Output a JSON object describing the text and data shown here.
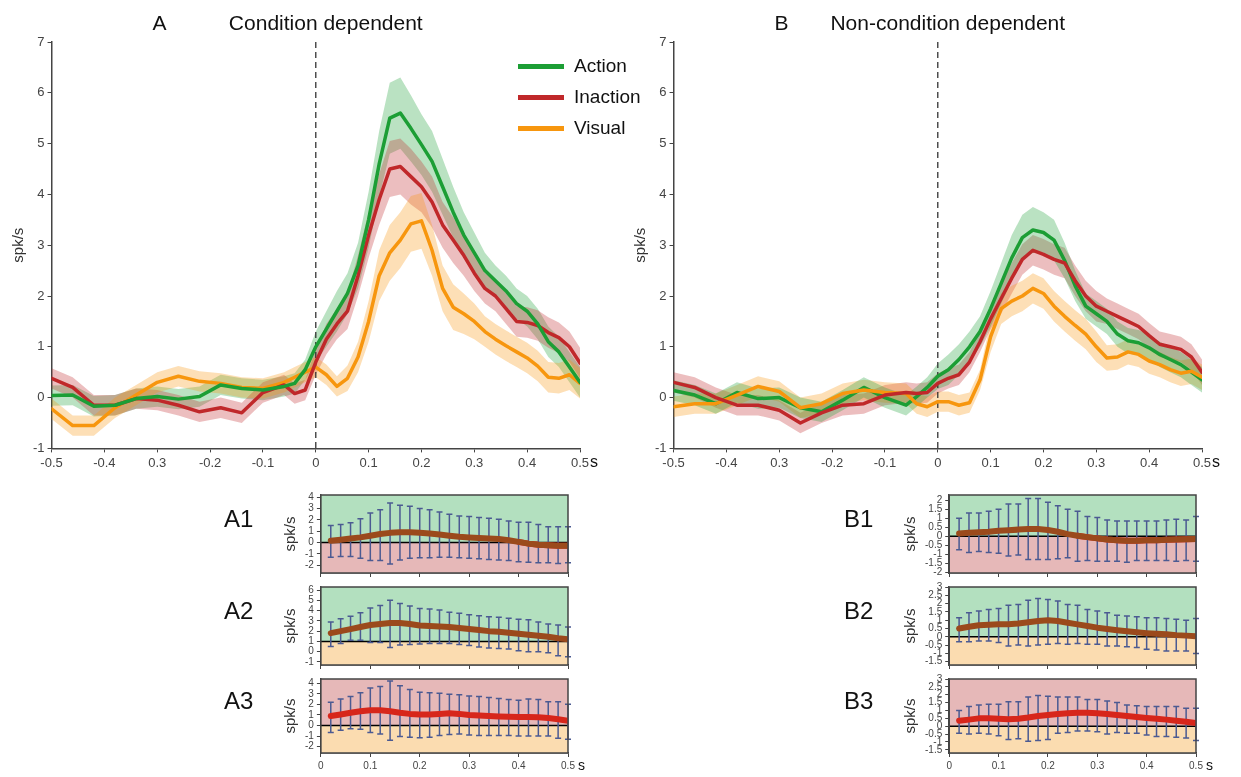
{
  "chart_data": [
    {
      "type": "line",
      "title": "Condition dependent",
      "annotations": [
        "A"
      ],
      "xlabel": "s",
      "ylabel": "spk/s",
      "xlim": [
        -0.5,
        0.5
      ],
      "ylim": [
        -1,
        7
      ],
      "xticks": [
        -0.5,
        -0.4,
        {
          "value": -0.3,
          "label": "0.3"
        },
        -0.2,
        -0.1,
        0,
        0.1,
        0.2,
        0.3,
        0.4,
        0.5
      ],
      "yticks": [
        -1,
        0,
        1,
        2,
        3,
        4,
        5,
        6,
        7
      ],
      "legend": "top right",
      "grid": false,
      "marker": "none",
      "ref_lines": [
        {
          "axis": "x",
          "value": 0,
          "line_style": "dashed",
          "color": "#333333"
        }
      ],
      "x": [
        -0.5,
        -0.46,
        -0.42,
        -0.38,
        -0.34,
        -0.3,
        -0.26,
        -0.22,
        -0.18,
        -0.14,
        -0.1,
        -0.06,
        -0.04,
        -0.02,
        0,
        0.02,
        0.04,
        0.06,
        0.08,
        0.1,
        0.12,
        0.14,
        0.16,
        0.18,
        0.2,
        0.22,
        0.24,
        0.26,
        0.28,
        0.3,
        0.32,
        0.34,
        0.36,
        0.38,
        0.4,
        0.42,
        0.44,
        0.46,
        0.48,
        0.5
      ],
      "series": [
        {
          "name": "Action",
          "color": "#1c9e35",
          "values": [
            0.04,
            0.05,
            -0.17,
            -0.15,
            -0.02,
            0.02,
            -0.03,
            0.02,
            0.25,
            0.18,
            0.15,
            0.22,
            0.28,
            0.55,
            1.0,
            1.35,
            1.7,
            2.05,
            2.6,
            3.5,
            4.6,
            5.5,
            5.6,
            5.3,
            4.98,
            4.65,
            4.15,
            3.65,
            3.2,
            2.85,
            2.5,
            2.3,
            2.1,
            1.85,
            1.7,
            1.45,
            1.1,
            0.9,
            0.6,
            0.3
          ],
          "lower": [
            -0.16,
            -0.15,
            -0.37,
            -0.35,
            -0.22,
            -0.18,
            -0.23,
            -0.18,
            0.05,
            -0.02,
            -0.05,
            0.02,
            0.08,
            0.35,
            0.7,
            1.0,
            1.3,
            1.65,
            2.15,
            2.95,
            3.95,
            4.8,
            4.9,
            4.65,
            4.38,
            4.05,
            3.6,
            3.15,
            2.75,
            2.45,
            2.15,
            2.0,
            1.8,
            1.55,
            1.4,
            1.15,
            0.8,
            0.6,
            0.3,
            0.0
          ],
          "upper": [
            0.24,
            0.25,
            0.03,
            0.05,
            0.18,
            0.22,
            0.17,
            0.22,
            0.45,
            0.38,
            0.35,
            0.42,
            0.48,
            0.75,
            1.3,
            1.7,
            2.1,
            2.45,
            3.05,
            4.05,
            5.25,
            6.2,
            6.3,
            5.95,
            5.58,
            5.25,
            4.7,
            4.15,
            3.65,
            3.25,
            2.85,
            2.6,
            2.4,
            2.15,
            2.0,
            1.75,
            1.4,
            1.2,
            0.9,
            0.6
          ]
        },
        {
          "name": "Inaction",
          "color": "#c0282a",
          "values": [
            0.38,
            0.2,
            -0.15,
            -0.15,
            -0.02,
            -0.05,
            -0.15,
            -0.28,
            -0.2,
            -0.3,
            0.1,
            0.25,
            0.08,
            0.15,
            0.7,
            1.15,
            1.45,
            1.7,
            2.4,
            3.2,
            3.9,
            4.5,
            4.55,
            4.35,
            4.15,
            3.85,
            3.4,
            3.1,
            2.8,
            2.45,
            2.15,
            2.0,
            1.75,
            1.5,
            1.48,
            1.42,
            1.28,
            1.18,
            1.0,
            0.68
          ],
          "lower": [
            0.18,
            0.0,
            -0.35,
            -0.35,
            -0.22,
            -0.25,
            -0.35,
            -0.48,
            -0.4,
            -0.5,
            -0.1,
            0.05,
            -0.12,
            -0.05,
            0.45,
            0.85,
            1.15,
            1.35,
            2.0,
            2.75,
            3.4,
            3.95,
            4.0,
            3.8,
            3.65,
            3.35,
            2.95,
            2.65,
            2.4,
            2.1,
            1.85,
            1.7,
            1.45,
            1.2,
            1.18,
            1.12,
            0.98,
            0.88,
            0.7,
            0.38
          ],
          "upper": [
            0.58,
            0.4,
            0.05,
            0.05,
            0.18,
            0.15,
            0.05,
            -0.08,
            0.0,
            -0.1,
            0.3,
            0.45,
            0.28,
            0.35,
            0.95,
            1.45,
            1.75,
            2.05,
            2.8,
            3.65,
            4.4,
            5.05,
            5.1,
            4.9,
            4.65,
            4.35,
            3.85,
            3.55,
            3.2,
            2.8,
            2.45,
            2.3,
            2.05,
            1.8,
            1.78,
            1.72,
            1.58,
            1.48,
            1.3,
            0.98
          ]
        },
        {
          "name": "Visual",
          "color": "#f7960e",
          "values": [
            -0.22,
            -0.55,
            -0.55,
            -0.2,
            0.05,
            0.3,
            0.42,
            0.32,
            0.28,
            0.2,
            0.18,
            0.3,
            0.4,
            0.5,
            0.6,
            0.45,
            0.22,
            0.38,
            0.8,
            1.5,
            2.4,
            2.85,
            3.1,
            3.42,
            3.48,
            2.9,
            2.15,
            1.78,
            1.65,
            1.5,
            1.3,
            1.15,
            1.02,
            0.9,
            0.78,
            0.62,
            0.4,
            0.38,
            0.45,
            0.28
          ],
          "lower": [
            -0.42,
            -0.75,
            -0.75,
            -0.4,
            -0.15,
            0.1,
            0.22,
            0.12,
            0.08,
            0.0,
            -0.02,
            0.1,
            0.2,
            0.3,
            0.4,
            0.25,
            0.02,
            0.13,
            0.5,
            1.1,
            1.9,
            2.3,
            2.55,
            2.87,
            2.93,
            2.4,
            1.7,
            1.33,
            1.25,
            1.15,
            1.0,
            0.85,
            0.72,
            0.6,
            0.48,
            0.32,
            0.1,
            0.08,
            0.15,
            -0.02
          ],
          "upper": [
            -0.02,
            -0.35,
            -0.35,
            0.0,
            0.25,
            0.5,
            0.62,
            0.52,
            0.48,
            0.4,
            0.38,
            0.5,
            0.6,
            0.7,
            0.8,
            0.65,
            0.42,
            0.63,
            1.1,
            1.9,
            2.9,
            3.4,
            3.65,
            3.97,
            4.03,
            3.4,
            2.6,
            2.23,
            2.05,
            1.85,
            1.6,
            1.45,
            1.32,
            1.2,
            1.08,
            0.92,
            0.7,
            0.68,
            0.75,
            0.58
          ]
        }
      ]
    },
    {
      "type": "line",
      "title": "Non-condition dependent",
      "annotations": [
        "B"
      ],
      "xlabel": "s",
      "ylabel": "spk/s",
      "xlim": [
        -0.5,
        0.5
      ],
      "ylim": [
        -1,
        7
      ],
      "xticks": [
        -0.5,
        -0.4,
        {
          "value": -0.3,
          "label": "0.3"
        },
        -0.2,
        -0.1,
        0,
        0.1,
        0.2,
        0.3,
        0.4,
        0.5
      ],
      "yticks": [
        -1,
        0,
        1,
        2,
        3,
        4,
        5,
        6,
        7
      ],
      "grid": false,
      "marker": "none",
      "ref_lines": [
        {
          "axis": "x",
          "value": 0,
          "line_style": "dashed",
          "color": "#333333"
        }
      ],
      "x": [
        -0.5,
        -0.46,
        -0.42,
        -0.38,
        -0.34,
        -0.3,
        -0.26,
        -0.22,
        -0.18,
        -0.14,
        -0.1,
        -0.06,
        -0.04,
        -0.02,
        0,
        0.02,
        0.04,
        0.06,
        0.08,
        0.1,
        0.12,
        0.14,
        0.16,
        0.18,
        0.2,
        0.22,
        0.24,
        0.26,
        0.28,
        0.3,
        0.32,
        0.34,
        0.36,
        0.38,
        0.4,
        0.42,
        0.44,
        0.46,
        0.48,
        0.5
      ],
      "series": [
        {
          "color": "#c0282a",
          "values": [
            0.3,
            0.2,
            0.0,
            -0.15,
            -0.15,
            -0.25,
            -0.5,
            -0.3,
            -0.15,
            -0.12,
            0.05,
            0.1,
            0.08,
            0.1,
            0.28,
            0.38,
            0.45,
            0.7,
            1.1,
            1.55,
            1.95,
            2.35,
            2.72,
            2.9,
            2.82,
            2.72,
            2.65,
            2.3,
            2.0,
            1.8,
            1.7,
            1.6,
            1.5,
            1.4,
            1.22,
            1.05,
            1.0,
            0.95,
            0.8,
            0.5
          ],
          "lower": [
            0.1,
            0.0,
            -0.2,
            -0.35,
            -0.35,
            -0.45,
            -0.7,
            -0.5,
            -0.35,
            -0.32,
            -0.15,
            -0.1,
            -0.12,
            -0.1,
            0.08,
            0.18,
            0.25,
            0.5,
            0.9,
            1.35,
            1.65,
            2.05,
            2.42,
            2.6,
            2.52,
            2.42,
            2.35,
            2.0,
            1.7,
            1.5,
            1.45,
            1.35,
            1.25,
            1.15,
            0.97,
            0.8,
            0.75,
            0.7,
            0.55,
            0.25
          ],
          "upper": [
            0.5,
            0.4,
            0.2,
            0.05,
            0.05,
            -0.05,
            -0.3,
            -0.1,
            0.05,
            0.08,
            0.25,
            0.3,
            0.28,
            0.3,
            0.48,
            0.58,
            0.65,
            0.9,
            1.3,
            1.75,
            2.25,
            2.65,
            3.02,
            3.2,
            3.12,
            3.02,
            2.95,
            2.6,
            2.3,
            2.1,
            1.95,
            1.85,
            1.75,
            1.65,
            1.47,
            1.3,
            1.25,
            1.2,
            1.05,
            0.75
          ]
        },
        {
          "color": "#f7960e",
          "values": [
            -0.18,
            -0.12,
            -0.12,
            0.05,
            0.22,
            0.12,
            -0.2,
            -0.12,
            0.08,
            0.15,
            0.1,
            0.08,
            -0.12,
            -0.18,
            -0.08,
            -0.08,
            -0.15,
            -0.1,
            0.35,
            1.2,
            1.75,
            1.9,
            2.0,
            2.15,
            2.05,
            1.8,
            1.6,
            1.42,
            1.25,
            1.0,
            0.78,
            0.8,
            0.9,
            0.85,
            0.72,
            0.65,
            0.55,
            0.48,
            0.52,
            0.4
          ],
          "lower": [
            -0.38,
            -0.32,
            -0.32,
            -0.15,
            0.02,
            -0.08,
            -0.4,
            -0.32,
            -0.12,
            -0.05,
            -0.1,
            -0.12,
            -0.32,
            -0.38,
            -0.28,
            -0.28,
            -0.35,
            -0.3,
            0.15,
            0.9,
            1.45,
            1.6,
            1.7,
            1.85,
            1.75,
            1.5,
            1.3,
            1.12,
            0.95,
            0.7,
            0.53,
            0.55,
            0.65,
            0.6,
            0.47,
            0.4,
            0.3,
            0.23,
            0.27,
            0.15
          ],
          "upper": [
            0.02,
            0.08,
            0.08,
            0.25,
            0.42,
            0.32,
            0.0,
            0.08,
            0.28,
            0.35,
            0.3,
            0.28,
            0.08,
            0.02,
            0.12,
            0.12,
            0.05,
            0.1,
            0.55,
            1.5,
            2.05,
            2.2,
            2.3,
            2.45,
            2.35,
            2.1,
            1.9,
            1.72,
            1.55,
            1.3,
            1.03,
            1.05,
            1.15,
            1.1,
            0.97,
            0.9,
            0.8,
            0.73,
            0.77,
            0.65
          ]
        },
        {
          "color": "#1c9e35",
          "values": [
            0.14,
            0.05,
            -0.12,
            0.1,
            -0.02,
            0.0,
            -0.2,
            -0.28,
            -0.05,
            0.2,
            0.0,
            -0.15,
            0.02,
            0.2,
            0.42,
            0.55,
            0.75,
            1.0,
            1.3,
            1.75,
            2.25,
            2.75,
            3.15,
            3.3,
            3.25,
            3.1,
            2.7,
            2.2,
            1.8,
            1.65,
            1.5,
            1.25,
            1.12,
            1.08,
            0.98,
            0.85,
            0.75,
            0.65,
            0.5,
            0.35
          ],
          "lower": [
            -0.06,
            -0.15,
            -0.32,
            -0.1,
            -0.22,
            -0.2,
            -0.4,
            -0.48,
            -0.25,
            0.0,
            -0.2,
            -0.35,
            -0.18,
            0.0,
            0.17,
            0.25,
            0.45,
            0.7,
            1.0,
            1.4,
            1.85,
            2.3,
            2.7,
            2.85,
            2.85,
            2.7,
            2.35,
            1.9,
            1.55,
            1.4,
            1.25,
            1.0,
            0.87,
            0.83,
            0.73,
            0.6,
            0.5,
            0.4,
            0.25,
            0.1
          ],
          "upper": [
            0.34,
            0.25,
            0.08,
            0.3,
            0.18,
            0.2,
            0.0,
            -0.08,
            0.15,
            0.4,
            0.2,
            0.05,
            0.22,
            0.4,
            0.67,
            0.85,
            1.05,
            1.3,
            1.6,
            2.1,
            2.65,
            3.2,
            3.6,
            3.75,
            3.65,
            3.5,
            3.05,
            2.5,
            2.05,
            1.9,
            1.75,
            1.5,
            1.37,
            1.33,
            1.23,
            1.1,
            1.0,
            0.9,
            0.75,
            0.6
          ]
        }
      ]
    },
    {
      "type": "line",
      "title": "A1",
      "ylabel": "spk/s",
      "xlim": [
        0,
        0.5
      ],
      "ylim": [
        -2.7,
        4.2
      ],
      "xticks": [
        0,
        0.1,
        0.2,
        0.3,
        0.4,
        0.5
      ],
      "yticks": [
        -2,
        -1,
        0,
        1,
        2,
        3,
        4
      ],
      "tick_labels": "y",
      "grid": false,
      "marker": "none",
      "bands": [
        {
          "axis": "y",
          "from": 0,
          "to": 4.2,
          "color": "#b3e0bf"
        },
        {
          "axis": "y",
          "from": -2.7,
          "to": 0,
          "color": "#e6b8b8"
        }
      ],
      "ref_lines": [
        {
          "axis": "y",
          "value": 0,
          "color": "#000000"
        }
      ],
      "x": [
        0.02,
        0.04,
        0.06,
        0.08,
        0.1,
        0.12,
        0.14,
        0.16,
        0.18,
        0.2,
        0.22,
        0.24,
        0.26,
        0.28,
        0.3,
        0.32,
        0.34,
        0.36,
        0.38,
        0.4,
        0.42,
        0.44,
        0.46,
        0.48,
        0.5
      ],
      "series": [
        {
          "color": "#9b4a1c",
          "values": [
            0.15,
            0.25,
            0.35,
            0.45,
            0.6,
            0.75,
            0.85,
            0.9,
            0.9,
            0.85,
            0.8,
            0.7,
            0.6,
            0.5,
            0.45,
            0.4,
            0.35,
            0.3,
            0.2,
            0.05,
            -0.1,
            -0.2,
            -0.25,
            -0.3,
            -0.3
          ],
          "errors": [
            [
              -1.3,
              1.5
            ],
            [
              -1.25,
              1.6
            ],
            [
              -1.25,
              1.75
            ],
            [
              -1.4,
              2.1
            ],
            [
              -1.6,
              2.6
            ],
            [
              -1.6,
              2.9
            ],
            [
              -1.9,
              3.5
            ],
            [
              -1.55,
              3.3
            ],
            [
              -1.4,
              3.2
            ],
            [
              -1.35,
              3.0
            ],
            [
              -1.35,
              2.9
            ],
            [
              -1.3,
              2.7
            ],
            [
              -1.3,
              2.5
            ],
            [
              -1.35,
              2.35
            ],
            [
              -1.4,
              2.3
            ],
            [
              -1.45,
              2.2
            ],
            [
              -1.5,
              2.15
            ],
            [
              -1.55,
              2.05
            ],
            [
              -1.6,
              1.9
            ],
            [
              -1.7,
              1.8
            ],
            [
              -1.75,
              1.8
            ],
            [
              -1.8,
              1.6
            ],
            [
              -1.8,
              1.4
            ],
            [
              -1.85,
              1.4
            ],
            [
              -1.8,
              1.4
            ]
          ]
        },
        {
          "color": "#d7261b",
          "x": [
            0.4,
            0.42,
            0.44,
            0.46,
            0.48,
            0.5
          ],
          "values": [
            0.05,
            -0.1,
            -0.2,
            -0.25,
            -0.3,
            -0.3
          ]
        }
      ]
    },
    {
      "type": "line",
      "title": "B1",
      "ylabel": "spk/s",
      "xlim": [
        0,
        0.5
      ],
      "ylim": [
        -2.05,
        2.3
      ],
      "xticks": [
        0,
        0.1,
        0.2,
        0.3,
        0.4,
        0.5
      ],
      "yticks": [
        -2,
        -1.5,
        -1,
        -0.5,
        0,
        0.5,
        1,
        1.5,
        2
      ],
      "tick_labels": "y",
      "grid": false,
      "marker": "none",
      "bands": [
        {
          "axis": "y",
          "from": 0,
          "to": 2.3,
          "color": "#b3e0bf"
        },
        {
          "axis": "y",
          "from": -2.05,
          "to": 0,
          "color": "#e6b8b8"
        }
      ],
      "ref_lines": [
        {
          "axis": "y",
          "value": 0,
          "color": "#000000"
        }
      ],
      "x": [
        0.02,
        0.04,
        0.06,
        0.08,
        0.1,
        0.12,
        0.14,
        0.16,
        0.18,
        0.2,
        0.22,
        0.24,
        0.26,
        0.28,
        0.3,
        0.32,
        0.34,
        0.36,
        0.38,
        0.4,
        0.42,
        0.44,
        0.46,
        0.48,
        0.5
      ],
      "series": [
        {
          "color": "#9b4a1c",
          "values": [
            0.15,
            0.2,
            0.22,
            0.25,
            0.3,
            0.33,
            0.37,
            0.4,
            0.4,
            0.35,
            0.25,
            0.12,
            0.03,
            -0.05,
            -0.12,
            -0.18,
            -0.22,
            -0.25,
            -0.25,
            -0.23,
            -0.22,
            -0.2,
            -0.18,
            -0.17,
            -0.15
          ],
          "errors": [
            [
              -0.75,
              1.0
            ],
            [
              -0.9,
              1.3
            ],
            [
              -0.85,
              1.3
            ],
            [
              -0.9,
              1.4
            ],
            [
              -0.95,
              1.5
            ],
            [
              -1.1,
              1.8
            ],
            [
              -1.05,
              1.8
            ],
            [
              -1.3,
              2.1
            ],
            [
              -1.3,
              2.1
            ],
            [
              -1.3,
              1.9
            ],
            [
              -1.25,
              1.7
            ],
            [
              -1.2,
              1.5
            ],
            [
              -1.4,
              1.4
            ],
            [
              -1.35,
              1.1
            ],
            [
              -1.4,
              1.05
            ],
            [
              -1.4,
              0.9
            ],
            [
              -1.4,
              0.85
            ],
            [
              -1.45,
              0.85
            ],
            [
              -1.35,
              0.85
            ],
            [
              -1.35,
              0.85
            ],
            [
              -1.35,
              0.85
            ],
            [
              -1.35,
              0.9
            ],
            [
              -1.4,
              0.95
            ],
            [
              -1.35,
              0.9
            ],
            [
              -1.4,
              1.1
            ]
          ]
        },
        {
          "color": "#d7261b",
          "x": [
            0.26,
            0.28,
            0.3,
            0.32,
            0.34,
            0.36,
            0.38,
            0.4,
            0.42,
            0.44,
            0.46,
            0.48,
            0.5
          ],
          "values": [
            0.03,
            -0.05,
            -0.12,
            -0.18,
            -0.22,
            -0.25,
            -0.25,
            -0.23,
            -0.22,
            -0.2,
            -0.18,
            -0.17,
            -0.15
          ]
        }
      ]
    },
    {
      "type": "line",
      "title": "A2",
      "ylabel": "spk/s",
      "xlim": [
        0,
        0.5
      ],
      "ylim": [
        -1.3,
        6.3
      ],
      "xticks": [
        0,
        0.1,
        0.2,
        0.3,
        0.4,
        0.5
      ],
      "yticks": [
        -1,
        0,
        1,
        2,
        3,
        4,
        5,
        6
      ],
      "tick_labels": "y",
      "grid": false,
      "marker": "none",
      "bands": [
        {
          "axis": "y",
          "from": 1,
          "to": 6.3,
          "color": "#b3e0bf"
        },
        {
          "axis": "y",
          "from": -1.3,
          "to": 1,
          "color": "#fbdcb0"
        }
      ],
      "ref_lines": [
        {
          "axis": "y",
          "value": 1,
          "color": "#000000"
        }
      ],
      "x": [
        0.02,
        0.04,
        0.06,
        0.08,
        0.1,
        0.12,
        0.14,
        0.16,
        0.18,
        0.2,
        0.22,
        0.24,
        0.26,
        0.28,
        0.3,
        0.32,
        0.34,
        0.36,
        0.38,
        0.4,
        0.42,
        0.44,
        0.46,
        0.48,
        0.5
      ],
      "series": [
        {
          "color": "#9b4a1c",
          "values": [
            1.8,
            2.0,
            2.2,
            2.4,
            2.6,
            2.7,
            2.8,
            2.8,
            2.7,
            2.55,
            2.5,
            2.45,
            2.4,
            2.3,
            2.2,
            2.1,
            2.0,
            1.95,
            1.85,
            1.75,
            1.65,
            1.55,
            1.45,
            1.3,
            1.2
          ],
          "errors": [
            [
              0.5,
              2.9
            ],
            [
              0.8,
              3.2
            ],
            [
              1.1,
              3.45
            ],
            [
              1.1,
              3.8
            ],
            [
              0.9,
              4.25
            ],
            [
              0.9,
              4.5
            ],
            [
              0.4,
              5.0
            ],
            [
              0.65,
              4.7
            ],
            [
              0.7,
              4.45
            ],
            [
              0.75,
              4.2
            ],
            [
              0.8,
              4.15
            ],
            [
              0.8,
              4.05
            ],
            [
              0.8,
              3.85
            ],
            [
              0.7,
              3.75
            ],
            [
              0.6,
              3.6
            ],
            [
              0.45,
              3.5
            ],
            [
              0.35,
              3.4
            ],
            [
              0.3,
              3.35
            ],
            [
              0.25,
              3.25
            ],
            [
              0.1,
              3.15
            ],
            [
              0.0,
              3.1
            ],
            [
              0.0,
              2.9
            ],
            [
              -0.1,
              2.7
            ],
            [
              -0.4,
              2.6
            ],
            [
              -0.5,
              2.4
            ]
          ]
        }
      ]
    },
    {
      "type": "line",
      "title": "B2",
      "ylabel": "spk/s",
      "xlim": [
        0,
        0.5
      ],
      "ylim": [
        -1.7,
        3
      ],
      "xticks": [
        0,
        0.1,
        0.2,
        0.3,
        0.4,
        0.5
      ],
      "yticks": [
        -1.5,
        -1,
        -0.5,
        0,
        0.5,
        1,
        1.5,
        2,
        2.5,
        3
      ],
      "tick_labels": "y",
      "grid": false,
      "marker": "none",
      "bands": [
        {
          "axis": "y",
          "from": 0,
          "to": 3,
          "color": "#b3e0bf"
        },
        {
          "axis": "y",
          "from": -1.7,
          "to": 0,
          "color": "#fbdcb0"
        }
      ],
      "ref_lines": [
        {
          "axis": "y",
          "value": 0,
          "color": "#000000"
        }
      ],
      "x": [
        0.02,
        0.04,
        0.06,
        0.08,
        0.1,
        0.12,
        0.14,
        0.16,
        0.18,
        0.2,
        0.22,
        0.24,
        0.26,
        0.28,
        0.3,
        0.32,
        0.34,
        0.36,
        0.38,
        0.4,
        0.42,
        0.44,
        0.46,
        0.48,
        0.5
      ],
      "series": [
        {
          "color": "#9b4a1c",
          "values": [
            0.5,
            0.6,
            0.7,
            0.72,
            0.75,
            0.75,
            0.8,
            0.88,
            0.95,
            1.0,
            0.95,
            0.85,
            0.75,
            0.65,
            0.55,
            0.47,
            0.4,
            0.33,
            0.27,
            0.22,
            0.18,
            0.15,
            0.1,
            0.07,
            0.03
          ],
          "errors": [
            [
              -0.3,
              1.15
            ],
            [
              -0.3,
              1.45
            ],
            [
              -0.25,
              1.55
            ],
            [
              -0.25,
              1.65
            ],
            [
              -0.35,
              1.7
            ],
            [
              -0.55,
              1.9
            ],
            [
              -0.5,
              1.95
            ],
            [
              -0.55,
              2.2
            ],
            [
              -0.5,
              2.3
            ],
            [
              -0.45,
              2.25
            ],
            [
              -0.4,
              2.15
            ],
            [
              -0.45,
              1.95
            ],
            [
              -0.4,
              1.9
            ],
            [
              -0.45,
              1.65
            ],
            [
              -0.45,
              1.55
            ],
            [
              -0.55,
              1.45
            ],
            [
              -0.55,
              1.3
            ],
            [
              -0.6,
              1.25
            ],
            [
              -0.65,
              1.2
            ],
            [
              -0.75,
              1.15
            ],
            [
              -0.8,
              1.15
            ],
            [
              -0.85,
              1.1
            ],
            [
              -0.85,
              1.05
            ],
            [
              -0.85,
              1.0
            ],
            [
              -1.0,
              1.1
            ]
          ]
        }
      ]
    },
    {
      "type": "line",
      "title": "A3",
      "xlabel": "s",
      "ylabel": "spk/s",
      "xlim": [
        0,
        0.5
      ],
      "ylim": [
        -2.6,
        4.4
      ],
      "xticks": [
        0,
        0.1,
        0.2,
        0.3,
        0.4,
        0.5
      ],
      "yticks": [
        -2,
        -1,
        0,
        1,
        2,
        3,
        4
      ],
      "grid": false,
      "marker": "none",
      "bands": [
        {
          "axis": "y",
          "from": 0,
          "to": 4.4,
          "color": "#e6b8b8"
        },
        {
          "axis": "y",
          "from": -2.6,
          "to": 0,
          "color": "#fbdcb0"
        }
      ],
      "ref_lines": [
        {
          "axis": "y",
          "value": 0,
          "color": "#000000"
        }
      ],
      "x": [
        0.02,
        0.04,
        0.06,
        0.08,
        0.1,
        0.12,
        0.14,
        0.16,
        0.18,
        0.2,
        0.22,
        0.24,
        0.26,
        0.28,
        0.3,
        0.32,
        0.34,
        0.36,
        0.38,
        0.4,
        0.42,
        0.44,
        0.46,
        0.48,
        0.5
      ],
      "series": [
        {
          "color": "#d7261b",
          "values": [
            0.9,
            1.05,
            1.2,
            1.35,
            1.45,
            1.45,
            1.35,
            1.2,
            1.1,
            1.05,
            1.05,
            1.1,
            1.15,
            1.1,
            1.0,
            0.95,
            0.9,
            0.85,
            0.82,
            0.8,
            0.8,
            0.78,
            0.7,
            0.6,
            0.45
          ],
          "errors": [
            [
              -0.65,
              2.2
            ],
            [
              -0.45,
              2.5
            ],
            [
              -0.3,
              2.75
            ],
            [
              -0.35,
              3.1
            ],
            [
              -0.65,
              3.55
            ],
            [
              -0.8,
              3.7
            ],
            [
              -1.4,
              4.2
            ],
            [
              -1.05,
              3.75
            ],
            [
              -1.1,
              3.4
            ],
            [
              -1.15,
              3.15
            ],
            [
              -1.1,
              3.1
            ],
            [
              -0.95,
              3.05
            ],
            [
              -0.85,
              2.95
            ],
            [
              -0.8,
              2.9
            ],
            [
              -0.9,
              2.8
            ],
            [
              -0.95,
              2.75
            ],
            [
              -0.95,
              2.65
            ],
            [
              -0.95,
              2.55
            ],
            [
              -0.95,
              2.45
            ],
            [
              -1.0,
              2.4
            ],
            [
              -1.0,
              2.5
            ],
            [
              -1.0,
              2.45
            ],
            [
              -1.0,
              2.25
            ],
            [
              -1.2,
              2.25
            ],
            [
              -1.3,
              2.0
            ]
          ]
        }
      ]
    },
    {
      "type": "line",
      "title": "B3",
      "xlabel": "s",
      "ylabel": "spk/s",
      "xlim": [
        0,
        0.5
      ],
      "ylim": [
        -1.7,
        3
      ],
      "xticks": [
        0,
        0.1,
        0.2,
        0.3,
        0.4,
        0.5
      ],
      "yticks": [
        -1.5,
        -1,
        -0.5,
        0,
        0.5,
        1,
        1.5,
        2,
        2.5,
        3
      ],
      "grid": false,
      "marker": "none",
      "bands": [
        {
          "axis": "y",
          "from": 0,
          "to": 3,
          "color": "#e6b8b8"
        },
        {
          "axis": "y",
          "from": -1.7,
          "to": 0,
          "color": "#fbdcb0"
        }
      ],
      "ref_lines": [
        {
          "axis": "y",
          "value": 0,
          "color": "#000000"
        }
      ],
      "x": [
        0.02,
        0.04,
        0.06,
        0.08,
        0.1,
        0.12,
        0.14,
        0.16,
        0.18,
        0.2,
        0.22,
        0.24,
        0.26,
        0.28,
        0.3,
        0.32,
        0.34,
        0.36,
        0.38,
        0.4,
        0.42,
        0.44,
        0.46,
        0.48,
        0.5
      ],
      "series": [
        {
          "color": "#d7261b",
          "values": [
            0.35,
            0.42,
            0.5,
            0.5,
            0.48,
            0.45,
            0.47,
            0.55,
            0.65,
            0.72,
            0.78,
            0.82,
            0.85,
            0.85,
            0.82,
            0.78,
            0.72,
            0.65,
            0.58,
            0.52,
            0.47,
            0.42,
            0.35,
            0.28,
            0.2
          ],
          "errors": [
            [
              -0.45,
              1.0
            ],
            [
              -0.5,
              1.25
            ],
            [
              -0.45,
              1.35
            ],
            [
              -0.5,
              1.4
            ],
            [
              -0.6,
              1.4
            ],
            [
              -0.85,
              1.55
            ],
            [
              -0.8,
              1.55
            ],
            [
              -0.95,
              1.85
            ],
            [
              -0.9,
              1.95
            ],
            [
              -0.85,
              1.9
            ],
            [
              -0.45,
              1.85
            ],
            [
              -0.4,
              1.85
            ],
            [
              -0.3,
              1.85
            ],
            [
              -0.3,
              1.7
            ],
            [
              -0.35,
              1.7
            ],
            [
              -0.5,
              1.6
            ],
            [
              -0.4,
              1.5
            ],
            [
              -0.45,
              1.35
            ],
            [
              -0.45,
              1.3
            ],
            [
              -0.55,
              1.25
            ],
            [
              -0.65,
              1.25
            ],
            [
              -0.65,
              1.25
            ],
            [
              -0.7,
              1.25
            ],
            [
              -0.75,
              1.15
            ],
            [
              -0.9,
              1.15
            ]
          ]
        }
      ]
    }
  ]
}
